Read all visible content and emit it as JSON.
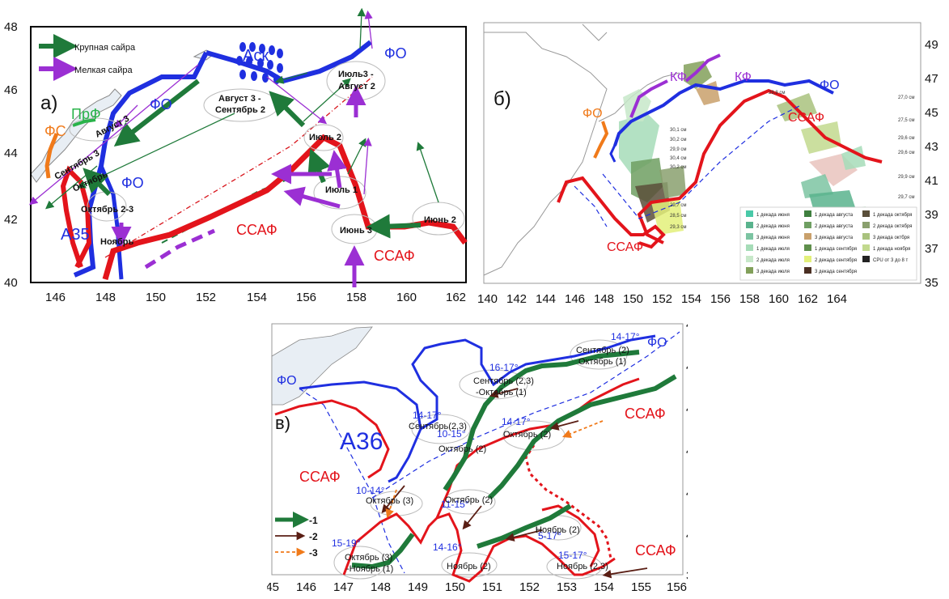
{
  "panel_a": {
    "tag": "а)",
    "yticks": [
      "48",
      "46",
      "44",
      "42",
      "40"
    ],
    "xticks": [
      "146",
      "148",
      "150",
      "152",
      "154",
      "156",
      "158",
      "160",
      "162"
    ],
    "legend": {
      "large": "Крупная сайра",
      "small": "Мелкая сайра"
    },
    "front_labels": {
      "fo_top": "ФО",
      "fo_mid": "ФО",
      "fo_low": "ФО",
      "fs": "ФС",
      "prf": "ПрФ",
      "a35": "А35",
      "ask": "Аск",
      "ssaf_main": "ССАФ",
      "ssaf_east": "ССАФ"
    },
    "period_labels": {
      "avgust3": "Август 3",
      "sent3": "Сентябрь 3",
      "okt_a": "Октябрь",
      "okt23": "Октябрь 2-3",
      "noyabr": "Ноябрь",
      "avg3_line1": "Август 3 -",
      "avg3_line2": "Сентябрь 2",
      "iyul3_line1": "Июль3 -",
      "iyul3_line2": "Август 2",
      "iyul2": "Июль 2",
      "iyul1": "Июль 1",
      "iyun3": "Июнь 3",
      "iyun2": "Июнь 2"
    }
  },
  "panel_b": {
    "tag": "б)",
    "yticks": [
      "49",
      "47",
      "45",
      "43",
      "41",
      "39",
      "37",
      "35"
    ],
    "xticks": [
      "140",
      "142",
      "144",
      "146",
      "148",
      "150",
      "152",
      "154",
      "156",
      "158",
      "160",
      "162",
      "164"
    ],
    "front_labels": {
      "fo_west": "ФО",
      "kf1": "КФ",
      "kf2": "КФ",
      "fo_east": "ФО",
      "ssaf_mid": "ССАФ",
      "ssaf_low": "ССАФ"
    },
    "size_labels": [
      "27,0 см",
      "27,5 см",
      "29,6 см",
      "29,6 см",
      "29,9 см",
      "29,7 см",
      "29,8 см",
      "30,1 см",
      "30,2 см",
      "29,9 см",
      "30,4 см",
      "30,2 см",
      "29,7 см",
      "28,5 см",
      "29,3 см"
    ],
    "legend": [
      {
        "label": "1 декада июня",
        "color": "#49c9a8"
      },
      {
        "label": "1 декада августа",
        "color": "#3f7f3f"
      },
      {
        "label": "1 декада октября",
        "color": "#5a4f3a"
      },
      {
        "label": "2 декада июня",
        "color": "#59b38d"
      },
      {
        "label": "2 декада августа",
        "color": "#6f9f62"
      },
      {
        "label": "2 декада октября",
        "color": "#8aa06e"
      },
      {
        "label": "3 декада июня",
        "color": "#7cc4a2"
      },
      {
        "label": "3 декада августа",
        "color": "#c9a06b"
      },
      {
        "label": "3 декада октбря",
        "color": "#a9c27e"
      },
      {
        "label": "1 декада июля",
        "color": "#a6dcb8"
      },
      {
        "label": "1 декада сентября",
        "color": "#5f8f4c"
      },
      {
        "label": "1 декада ноября",
        "color": "#c2d98e"
      },
      {
        "label": "2 декада июля",
        "color": "#c7e8c9"
      },
      {
        "label": "2 декада сентября",
        "color": "#e3f07a"
      },
      {
        "label": "CPU от 3 до 8 т",
        "color": "#222222"
      },
      {
        "label": "3 декада июля",
        "color": "#82a05a"
      },
      {
        "label": "3 декада сентября",
        "color": "#4a2f22"
      }
    ]
  },
  "panel_c": {
    "tag": "в)",
    "yticks": [
      "45",
      "44",
      "43",
      "42",
      "41",
      "40",
      "39"
    ],
    "xticks": [
      "145",
      "146",
      "147",
      "148",
      "149",
      "150",
      "151",
      "152",
      "153",
      "154",
      "155",
      "156"
    ],
    "front_labels": {
      "fo_west": "ФО",
      "fo_east": "ФО",
      "a36": "А36",
      "ssaf_west": "ССАФ",
      "ssaf_ne": "ССАФ",
      "ssaf_se": "ССАФ"
    },
    "temps": [
      "14-17°",
      "16-17°",
      "14-17°",
      "10-15°",
      "14-17°",
      "10-14°",
      "11-15°",
      "5-17°",
      "14-16°",
      "15-19°",
      "15-17°"
    ],
    "periods": {
      "s2_l1": "Сентябрь (2)",
      "s2_l2": "Октябрь (1)",
      "s23_l1": "Сентябрь (2,3)",
      "s23_l2": "-Октябрь (1)",
      "s23b": "Сентябрь(2,3)",
      "o2a": "Октябрь (2)",
      "o2b": "Октябрь (2)",
      "o3": "Октябрь (3)",
      "o2c": "Октябрь (2)",
      "n2a": "Ноябрь (2)",
      "o3n1_l1": "Октябрь (3)",
      "o3n1_l2": "-Ноябрь (1)",
      "n2b": "Ноябрь (2)",
      "n23": "Ноябрь (2,3)"
    },
    "legend": [
      "-1",
      "-2",
      "-3"
    ]
  },
  "colors": {
    "fo": "#1f2fe0",
    "ssaf": "#e3141b",
    "large": "#1f7a3a",
    "small": "#9b2fd3",
    "orange": "#f07a1a",
    "brown": "#5a1e14"
  }
}
